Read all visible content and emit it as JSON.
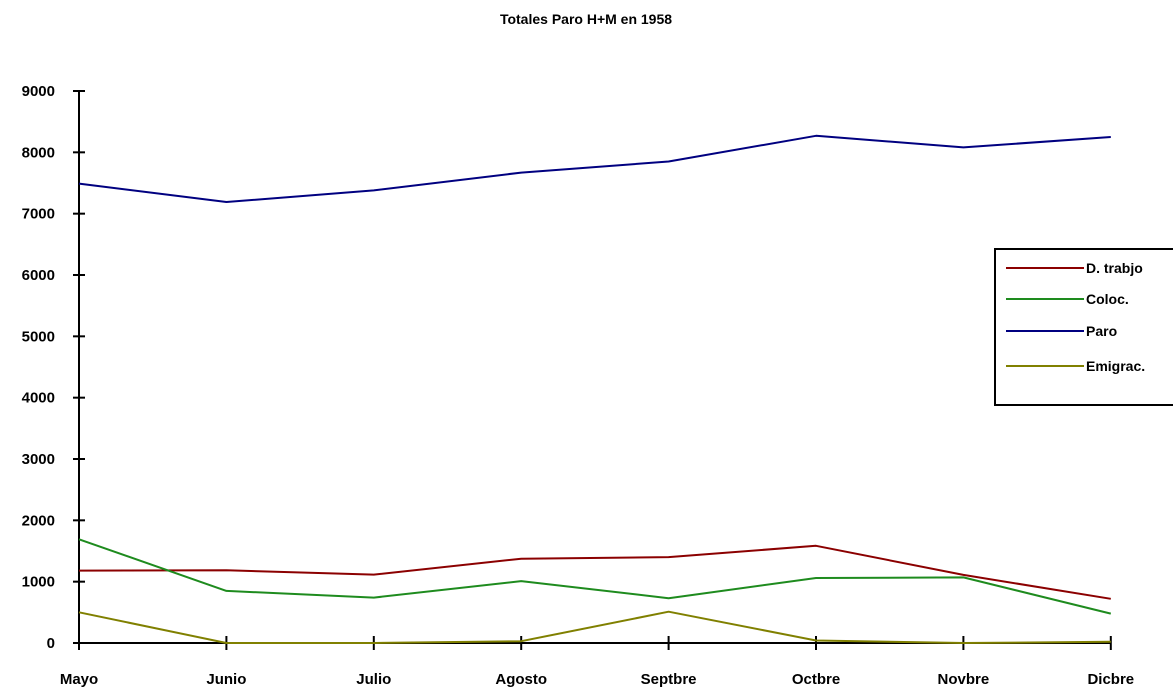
{
  "chart_data": {
    "type": "line",
    "title": "Totales Paro H+M en 1958",
    "xlabel": "",
    "ylabel": "",
    "categories": [
      "Mayo",
      "Junio",
      "Julio",
      "Agosto",
      "Septbre",
      "Octbre",
      "Novbre",
      "Dicbre"
    ],
    "y_ticks": [
      "0",
      "1000",
      "2000",
      "3000",
      "4000",
      "5000",
      "6000",
      "7000",
      "8000",
      "9000"
    ],
    "ylim": [
      0,
      9000
    ],
    "grid": false,
    "legend_position": "right",
    "series": [
      {
        "name": "D. trabjo",
        "color": "#8b0000",
        "values": [
          1180,
          1185,
          1115,
          1375,
          1400,
          1585,
          1110,
          720
        ]
      },
      {
        "name": "Coloc.",
        "color": "#1e8b1e",
        "values": [
          1690,
          850,
          740,
          1010,
          730,
          1060,
          1070,
          480
        ]
      },
      {
        "name": "Paro",
        "color": "#000080",
        "values": [
          7490,
          7190,
          7380,
          7670,
          7850,
          8270,
          8080,
          8250
        ]
      },
      {
        "name": "Emigrac.",
        "color": "#808000",
        "values": [
          500,
          0,
          0,
          30,
          510,
          40,
          0,
          20
        ]
      }
    ]
  }
}
